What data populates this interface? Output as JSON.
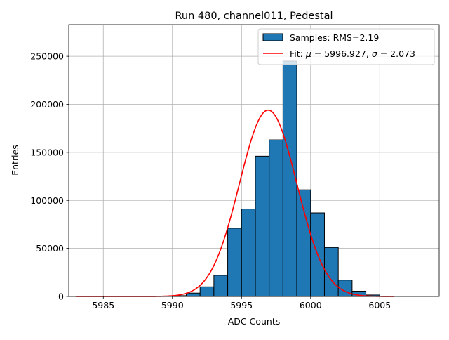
{
  "chart_data": {
    "type": "bar",
    "title": "Run 480, channel011, Pedestal",
    "xlabel": "ADC Counts",
    "ylabel": "Entries",
    "xlim": [
      5982.5,
      6009.3
    ],
    "ylim": [
      0,
      283000
    ],
    "xticks": [
      5985,
      5990,
      5995,
      6000,
      6005
    ],
    "yticks": [
      0,
      50000,
      100000,
      150000,
      200000,
      250000
    ],
    "grid": true,
    "legend_position": "top-right",
    "bin_width": 1,
    "bins": [
      {
        "x": 5990,
        "value": 800
      },
      {
        "x": 5991,
        "value": 3500
      },
      {
        "x": 5992,
        "value": 10000
      },
      {
        "x": 5993,
        "value": 22000
      },
      {
        "x": 5994,
        "value": 71000
      },
      {
        "x": 5995,
        "value": 91000
      },
      {
        "x": 5996,
        "value": 146000
      },
      {
        "x": 5997,
        "value": 163000
      },
      {
        "x": 5998,
        "value": 245000
      },
      {
        "x": 5999,
        "value": 111000
      },
      {
        "x": 6000,
        "value": 87000
      },
      {
        "x": 6001,
        "value": 51000
      },
      {
        "x": 6002,
        "value": 17000
      },
      {
        "x": 6003,
        "value": 5500
      },
      {
        "x": 6004,
        "value": 1500
      }
    ],
    "fit": {
      "mu": 5996.927,
      "sigma": 2.073,
      "amplitude": 194000,
      "x_range": [
        5983,
        6006
      ]
    },
    "series": [
      {
        "name": "Samples: RMS=2.19",
        "kind": "histogram",
        "color": "#1f77b4"
      },
      {
        "name": "Fit: μ = 5996.927, σ = 2.073",
        "kind": "line",
        "color": "#ff0000"
      }
    ]
  },
  "legend": {
    "samples_label": "Samples: RMS=2.19",
    "fit_prefix": "Fit: ",
    "fit_mu_symbol": "μ",
    "fit_mu_text": " = 5996.927, ",
    "fit_sigma_symbol": "σ",
    "fit_sigma_text": " = 2.073"
  }
}
